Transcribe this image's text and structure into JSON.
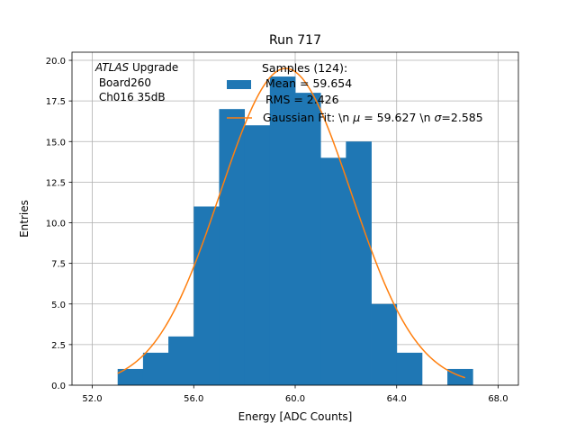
{
  "chart_data": {
    "type": "bar",
    "title": "Run 717",
    "xlabel": "Energy [ADC Counts]",
    "ylabel": "Entries",
    "xlim": [
      51.2,
      68.8
    ],
    "ylim": [
      0,
      20.5
    ],
    "xticks": [
      52.0,
      56.0,
      60.0,
      64.0,
      68.0
    ],
    "xtick_labels": [
      "52.0",
      "56.0",
      "60.0",
      "64.0",
      "68.0"
    ],
    "yticks": [
      0,
      2.5,
      5,
      7.5,
      10,
      12.5,
      15,
      17.5,
      20
    ],
    "ytick_labels": [
      "0.0",
      "2.5",
      "5.0",
      "7.5",
      "10.0",
      "12.5",
      "15.0",
      "17.5",
      "20.0"
    ],
    "grid": true,
    "histogram": {
      "bin_edges": [
        53,
        54,
        55,
        56,
        57,
        58,
        59,
        60,
        61,
        62,
        63,
        64,
        65,
        66,
        67
      ],
      "counts": [
        1,
        2,
        3,
        11,
        17,
        16,
        19,
        18,
        14,
        15,
        5,
        2,
        0,
        1
      ],
      "color": "#1f77b4"
    },
    "gaussian_fit": {
      "mu": 59.627,
      "sigma": 2.585,
      "amplitude": 19.5,
      "x_range": [
        53,
        66.7
      ],
      "color": "#ff7f0e"
    },
    "annotation": {
      "italic": "ATLAS",
      "line1_rest": " Upgrade",
      "line2": " Board260",
      "line3": " Ch016 35dB"
    },
    "legend": {
      "placement": "top-right",
      "header": "Samples (124):",
      "hist_mean": " Mean = 59.654",
      "hist_rms": " RMS = 2.426",
      "fit_prefix": "Gaussian Fit: \\n ",
      "fit_mu_symbol": "μ",
      "fit_mid": " = 59.627 \\n ",
      "fit_sigma_symbol": "σ",
      "fit_suffix": "=2.585"
    }
  }
}
